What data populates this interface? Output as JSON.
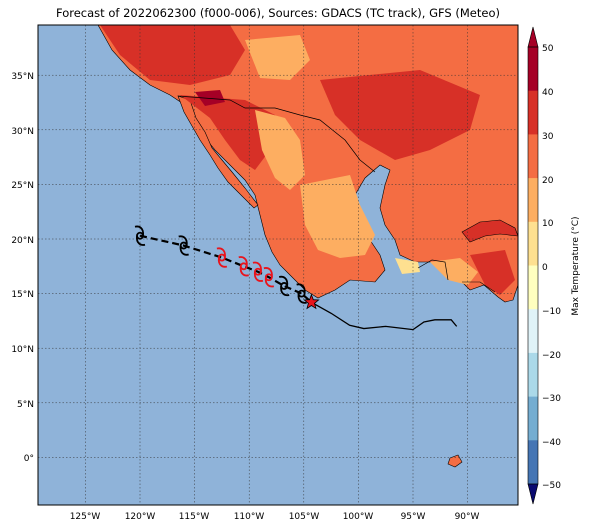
{
  "title": "Forecast of 2022062300 (f000-006), Sources: GDACS (TC track), GFS (Meteo)",
  "map": {
    "lat_ticks": [
      "35°N",
      "30°N",
      "25°N",
      "20°N",
      "15°N",
      "10°N",
      "5°N",
      "0°"
    ],
    "lon_ticks": [
      "125°W",
      "120°W",
      "115°W",
      "110°W",
      "105°W",
      "100°W",
      "95°W",
      "90°W"
    ],
    "ocean_color": "#8fb3d9",
    "gridlines": "dotted"
  },
  "colorbar": {
    "label": "Max Temperature (°C)",
    "ticks": [
      "50",
      "40",
      "30",
      "20",
      "10",
      "0",
      "−10",
      "−20",
      "−30",
      "−40",
      "−50"
    ],
    "colors": [
      "#a50026",
      "#d73027",
      "#f46d43",
      "#fdae61",
      "#fee090",
      "#ffffbf",
      "#e0f3f8",
      "#abd9e9",
      "#74add1",
      "#4575b4",
      "#313695"
    ]
  },
  "storm": {
    "current_marker": "red-star",
    "track_points": [
      {
        "lon": -120.0,
        "lat": 20.3,
        "color": "black",
        "icon": "tropical-storm-icon"
      },
      {
        "lon": -116.0,
        "lat": 19.4,
        "color": "black",
        "icon": "tropical-storm-icon"
      },
      {
        "lon": -112.5,
        "lat": 18.3,
        "color": "red",
        "icon": "hurricane-icon"
      },
      {
        "lon": -110.5,
        "lat": 17.5,
        "color": "red",
        "icon": "hurricane-icon"
      },
      {
        "lon": -109.2,
        "lat": 17.0,
        "color": "red",
        "icon": "hurricane-icon"
      },
      {
        "lon": -108.2,
        "lat": 16.5,
        "color": "red",
        "icon": "hurricane-icon"
      },
      {
        "lon": -106.8,
        "lat": 15.7,
        "color": "black",
        "icon": "tropical-storm-icon"
      },
      {
        "lon": -105.2,
        "lat": 15.0,
        "color": "black",
        "icon": "tropical-storm-icon"
      },
      {
        "lon": -104.3,
        "lat": 14.2,
        "color": "red",
        "icon": "star"
      }
    ],
    "past_track": [
      [
        -104.3,
        14.2
      ],
      [
        -102.5,
        13.2
      ],
      [
        -100.8,
        12.1
      ],
      [
        -99.5,
        11.8
      ],
      [
        -97.5,
        12.0
      ],
      [
        -95.0,
        11.7
      ],
      [
        -94.0,
        12.4
      ],
      [
        -93.0,
        12.6
      ],
      [
        -91.5,
        12.6
      ],
      [
        -91.0,
        12.0
      ]
    ]
  }
}
